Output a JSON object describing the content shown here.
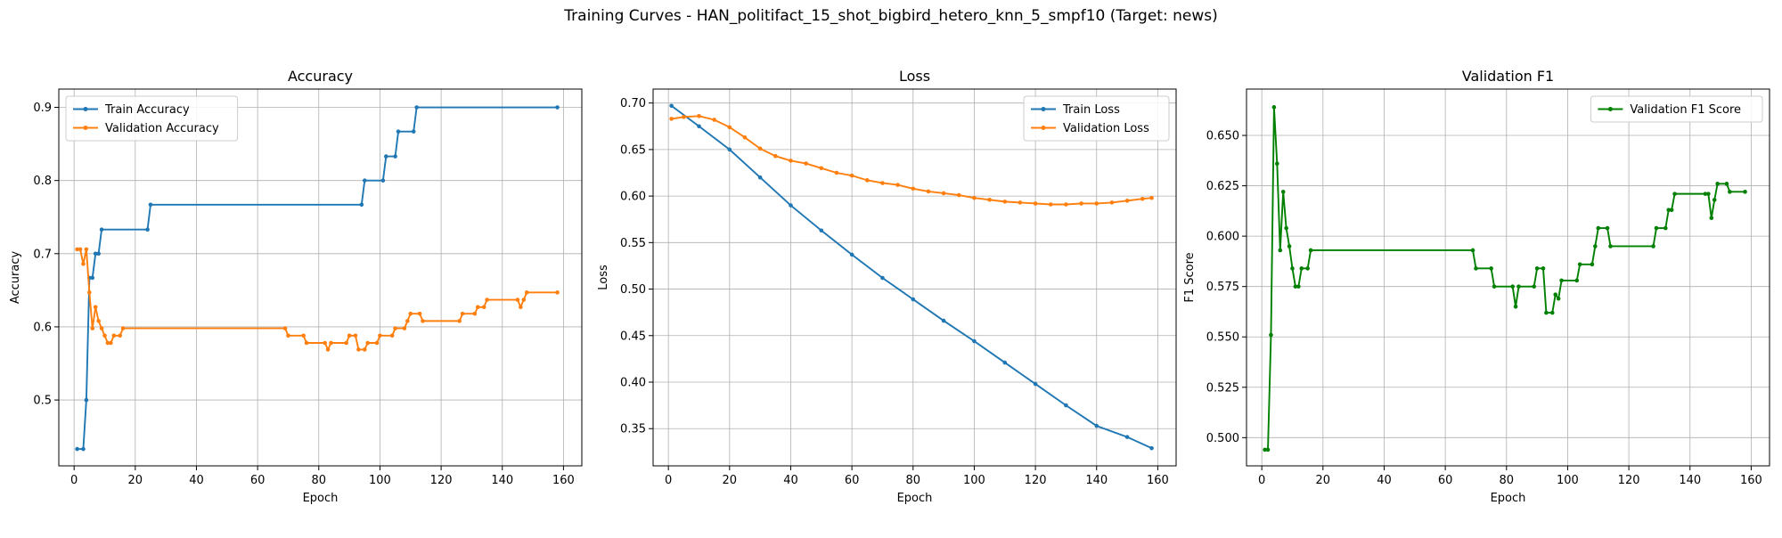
{
  "figure": {
    "suptitle": "Training Curves - HAN_politifact_15_shot_bigbird_hetero_knn_5_smpf10 (Target: news)"
  },
  "chart_data": [
    {
      "type": "line",
      "title": "Accuracy",
      "xlabel": "Epoch",
      "ylabel": "Accuracy",
      "xlim": [
        -5,
        166
      ],
      "ylim": [
        0.41,
        0.925
      ],
      "xticks": [
        0,
        20,
        40,
        60,
        80,
        100,
        120,
        140,
        160
      ],
      "yticks": [
        0.5,
        0.6,
        0.7,
        0.8,
        0.9
      ],
      "ytick_decimals": 1,
      "grid": true,
      "legend": "top-left",
      "series": [
        {
          "name": "Train Accuracy",
          "color": "#1f77b4",
          "points": [
            [
              1,
              0.433
            ],
            [
              3,
              0.433
            ],
            [
              4,
              0.5
            ],
            [
              5,
              0.667
            ],
            [
              6,
              0.667
            ],
            [
              7,
              0.7
            ],
            [
              8,
              0.7
            ],
            [
              9,
              0.733
            ],
            [
              24,
              0.733
            ],
            [
              25,
              0.767
            ],
            [
              94,
              0.767
            ],
            [
              95,
              0.8
            ],
            [
              101,
              0.8
            ],
            [
              102,
              0.833
            ],
            [
              105,
              0.833
            ],
            [
              106,
              0.867
            ],
            [
              111,
              0.867
            ],
            [
              112,
              0.9
            ],
            [
              158,
              0.9
            ]
          ]
        },
        {
          "name": "Validation Accuracy",
          "color": "#ff7f0e",
          "points": [
            [
              1,
              0.706
            ],
            [
              2,
              0.706
            ],
            [
              3,
              0.686
            ],
            [
              4,
              0.706
            ],
            [
              5,
              0.647
            ],
            [
              6,
              0.598
            ],
            [
              7,
              0.627
            ],
            [
              8,
              0.608
            ],
            [
              9,
              0.598
            ],
            [
              10,
              0.588
            ],
            [
              11,
              0.578
            ],
            [
              12,
              0.578
            ],
            [
              13,
              0.588
            ],
            [
              15,
              0.588
            ],
            [
              16,
              0.598
            ],
            [
              69,
              0.598
            ],
            [
              70,
              0.588
            ],
            [
              75,
              0.588
            ],
            [
              76,
              0.578
            ],
            [
              82,
              0.578
            ],
            [
              83,
              0.569
            ],
            [
              84,
              0.578
            ],
            [
              89,
              0.578
            ],
            [
              90,
              0.588
            ],
            [
              92,
              0.588
            ],
            [
              93,
              0.569
            ],
            [
              95,
              0.569
            ],
            [
              96,
              0.578
            ],
            [
              99,
              0.578
            ],
            [
              100,
              0.588
            ],
            [
              104,
              0.588
            ],
            [
              105,
              0.598
            ],
            [
              108,
              0.598
            ],
            [
              109,
              0.608
            ],
            [
              110,
              0.618
            ],
            [
              113,
              0.618
            ],
            [
              114,
              0.608
            ],
            [
              126,
              0.608
            ],
            [
              127,
              0.618
            ],
            [
              131,
              0.618
            ],
            [
              132,
              0.627
            ],
            [
              134,
              0.627
            ],
            [
              135,
              0.637
            ],
            [
              145,
              0.637
            ],
            [
              146,
              0.627
            ],
            [
              147,
              0.637
            ],
            [
              148,
              0.647
            ],
            [
              158,
              0.647
            ]
          ]
        }
      ]
    },
    {
      "type": "line",
      "title": "Loss",
      "xlabel": "Epoch",
      "ylabel": "Loss",
      "xlim": [
        -5,
        166
      ],
      "ylim": [
        0.31,
        0.715
      ],
      "xticks": [
        0,
        20,
        40,
        60,
        80,
        100,
        120,
        140,
        160
      ],
      "yticks": [
        0.35,
        0.4,
        0.45,
        0.5,
        0.55,
        0.6,
        0.65,
        0.7
      ],
      "ytick_decimals": 2,
      "grid": true,
      "legend": "top-right",
      "series": [
        {
          "name": "Train Loss",
          "color": "#1f77b4",
          "points": [
            [
              1,
              0.697
            ],
            [
              10,
              0.675
            ],
            [
              20,
              0.65
            ],
            [
              30,
              0.62
            ],
            [
              40,
              0.59
            ],
            [
              50,
              0.563
            ],
            [
              60,
              0.537
            ],
            [
              70,
              0.512
            ],
            [
              80,
              0.489
            ],
            [
              90,
              0.466
            ],
            [
              100,
              0.444
            ],
            [
              110,
              0.421
            ],
            [
              120,
              0.398
            ],
            [
              130,
              0.375
            ],
            [
              140,
              0.353
            ],
            [
              150,
              0.341
            ],
            [
              158,
              0.329
            ]
          ]
        },
        {
          "name": "Validation Loss",
          "color": "#ff7f0e",
          "points": [
            [
              1,
              0.683
            ],
            [
              5,
              0.685
            ],
            [
              10,
              0.686
            ],
            [
              15,
              0.682
            ],
            [
              20,
              0.674
            ],
            [
              25,
              0.663
            ],
            [
              30,
              0.651
            ],
            [
              35,
              0.643
            ],
            [
              40,
              0.638
            ],
            [
              45,
              0.635
            ],
            [
              50,
              0.63
            ],
            [
              55,
              0.625
            ],
            [
              60,
              0.622
            ],
            [
              65,
              0.617
            ],
            [
              70,
              0.614
            ],
            [
              75,
              0.612
            ],
            [
              80,
              0.608
            ],
            [
              85,
              0.605
            ],
            [
              90,
              0.603
            ],
            [
              95,
              0.601
            ],
            [
              100,
              0.598
            ],
            [
              105,
              0.596
            ],
            [
              110,
              0.594
            ],
            [
              115,
              0.593
            ],
            [
              120,
              0.592
            ],
            [
              125,
              0.591
            ],
            [
              130,
              0.591
            ],
            [
              135,
              0.592
            ],
            [
              140,
              0.592
            ],
            [
              145,
              0.593
            ],
            [
              150,
              0.595
            ],
            [
              155,
              0.597
            ],
            [
              158,
              0.598
            ]
          ]
        }
      ]
    },
    {
      "type": "line",
      "title": "Validation F1",
      "xlabel": "Epoch",
      "ylabel": "F1 Score",
      "xlim": [
        -5,
        166
      ],
      "ylim": [
        0.486,
        0.673
      ],
      "xticks": [
        0,
        20,
        40,
        60,
        80,
        100,
        120,
        140,
        160
      ],
      "yticks": [
        0.5,
        0.525,
        0.55,
        0.575,
        0.6,
        0.625,
        0.65
      ],
      "ytick_decimals": 3,
      "grid": true,
      "legend": "top-right",
      "series": [
        {
          "name": "Validation F1 Score",
          "color": "#008000",
          "points": [
            [
              1,
              0.494
            ],
            [
              2,
              0.494
            ],
            [
              3,
              0.551
            ],
            [
              4,
              0.664
            ],
            [
              5,
              0.636
            ],
            [
              6,
              0.593
            ],
            [
              7,
              0.622
            ],
            [
              8,
              0.604
            ],
            [
              9,
              0.595
            ],
            [
              10,
              0.584
            ],
            [
              11,
              0.575
            ],
            [
              12,
              0.575
            ],
            [
              13,
              0.584
            ],
            [
              15,
              0.584
            ],
            [
              16,
              0.593
            ],
            [
              69,
              0.593
            ],
            [
              70,
              0.584
            ],
            [
              75,
              0.584
            ],
            [
              76,
              0.575
            ],
            [
              82,
              0.575
            ],
            [
              83,
              0.565
            ],
            [
              84,
              0.575
            ],
            [
              89,
              0.575
            ],
            [
              90,
              0.584
            ],
            [
              92,
              0.584
            ],
            [
              93,
              0.562
            ],
            [
              95,
              0.562
            ],
            [
              96,
              0.571
            ],
            [
              97,
              0.569
            ],
            [
              98,
              0.578
            ],
            [
              103,
              0.578
            ],
            [
              104,
              0.586
            ],
            [
              108,
              0.586
            ],
            [
              109,
              0.595
            ],
            [
              110,
              0.604
            ],
            [
              113,
              0.604
            ],
            [
              114,
              0.595
            ],
            [
              128,
              0.595
            ],
            [
              129,
              0.604
            ],
            [
              132,
              0.604
            ],
            [
              133,
              0.613
            ],
            [
              134,
              0.613
            ],
            [
              135,
              0.621
            ],
            [
              145,
              0.621
            ],
            [
              146,
              0.621
            ],
            [
              147,
              0.609
            ],
            [
              148,
              0.618
            ],
            [
              149,
              0.626
            ],
            [
              152,
              0.626
            ],
            [
              153,
              0.622
            ],
            [
              158,
              0.622
            ]
          ]
        }
      ]
    }
  ]
}
